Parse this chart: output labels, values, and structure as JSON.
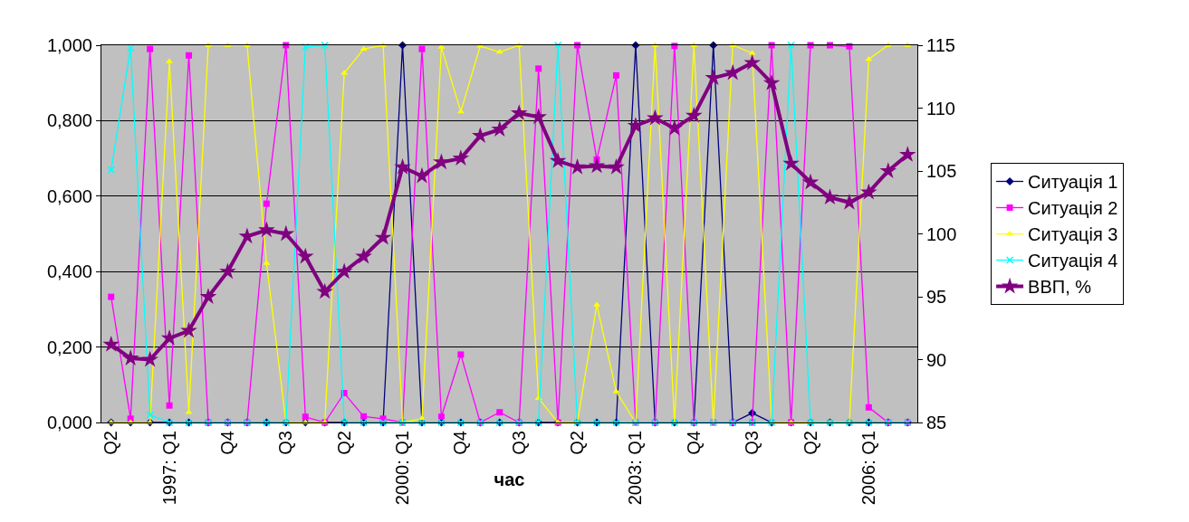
{
  "chart_data": {
    "type": "line",
    "xlabel": "час",
    "categories": [
      "Q2",
      null,
      null,
      "1997: Q1",
      null,
      null,
      "Q4",
      null,
      null,
      "Q3",
      null,
      null,
      "Q2",
      null,
      null,
      "2000: Q1",
      null,
      null,
      "Q4",
      null,
      null,
      "Q3",
      null,
      null,
      "Q2",
      null,
      null,
      "2003: Q1",
      null,
      null,
      "Q4",
      null,
      null,
      "Q3",
      null,
      null,
      "Q2",
      null,
      null,
      "2006: Q1",
      null,
      null
    ],
    "series": [
      {
        "name": "Ситуація 1",
        "color": "#000080",
        "marker": "diamond",
        "values": [
          0,
          0,
          0,
          0,
          0,
          0,
          0,
          0,
          0,
          0,
          0,
          0,
          0,
          0,
          0,
          1,
          0,
          0,
          0,
          0,
          0,
          0,
          0,
          0,
          0,
          0,
          0,
          1,
          0,
          0,
          0,
          1,
          0,
          0.025,
          0,
          0,
          0,
          0,
          0,
          0,
          0,
          0
        ]
      },
      {
        "name": "Ситуація 2",
        "color": "#ff00ff",
        "marker": "square",
        "values": [
          0.333,
          0.01,
          0.99,
          0.045,
          0.973,
          0,
          0,
          0,
          0.58,
          1,
          0.015,
          0,
          0.078,
          0.016,
          0.01,
          0,
          0.99,
          0.015,
          0.18,
          0,
          0.027,
          0,
          0.938,
          0,
          1,
          0.697,
          0.92,
          0,
          0,
          0.998,
          0,
          0,
          0,
          0,
          1,
          0,
          1,
          1,
          0.997,
          0.04,
          0,
          0
        ]
      },
      {
        "name": "Ситуація 3",
        "color": "#ffff00",
        "marker": "triangle",
        "values": [
          0,
          0,
          0,
          0.957,
          0.027,
          1,
          1,
          1,
          0.422,
          0,
          0,
          0,
          0.926,
          0.99,
          1,
          0,
          0.01,
          0.995,
          0.824,
          0.998,
          0.982,
          1,
          0.064,
          0,
          0,
          0.312,
          0.082,
          0,
          1,
          0,
          1,
          0,
          1,
          0.979,
          0,
          0,
          0,
          0,
          0,
          0.963,
          1,
          1
        ]
      },
      {
        "name": "Ситуація 4",
        "color": "#00ffff",
        "marker": "cross",
        "values": [
          0.67,
          0.993,
          0.02,
          0,
          0,
          0,
          0,
          0,
          0,
          0,
          0.995,
          1,
          0,
          0,
          0,
          0,
          0,
          0,
          0,
          0,
          0,
          0,
          0,
          1,
          0,
          0,
          0,
          0,
          0,
          0,
          0,
          0,
          0,
          0,
          0,
          1,
          0,
          0,
          0,
          0,
          0,
          0
        ]
      },
      {
        "name": "ВВП, %",
        "color": "#800080",
        "marker": "star",
        "axis": "y2",
        "values": [
          91.2,
          90.1,
          90.0,
          91.7,
          92.3,
          95.0,
          97.0,
          99.8,
          100.3,
          100.0,
          98.2,
          95.4,
          97.0,
          98.2,
          99.7,
          105.3,
          104.6,
          105.7,
          106.0,
          107.8,
          108.3,
          109.6,
          109.3,
          105.8,
          105.3,
          105.4,
          105.3,
          108.6,
          109.2,
          108.4,
          109.4,
          112.4,
          112.8,
          113.6,
          112.0,
          105.6,
          104.1,
          102.9,
          102.5,
          103.3,
          105.0,
          106.3
        ]
      }
    ],
    "ylim": [
      0,
      1
    ],
    "yticks": [
      {
        "value": 0,
        "label": "0,000"
      },
      {
        "value": 0.2,
        "label": "0,200"
      },
      {
        "value": 0.4,
        "label": "0,400"
      },
      {
        "value": 0.6,
        "label": "0,600"
      },
      {
        "value": 0.8,
        "label": "0,800"
      },
      {
        "value": 1,
        "label": "1,000"
      }
    ],
    "y2lim": [
      85,
      115
    ],
    "y2ticks": [
      85,
      90,
      95,
      100,
      105,
      110,
      115
    ],
    "grid": "y",
    "legend": "right",
    "line_style": "solid"
  }
}
